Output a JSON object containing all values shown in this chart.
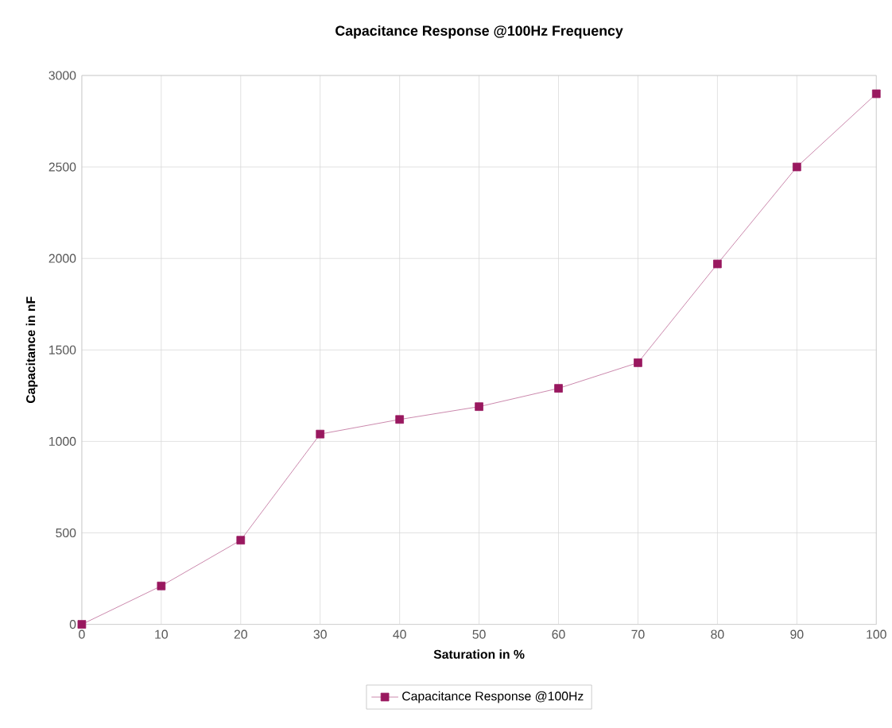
{
  "chart_data": {
    "type": "line",
    "title": "Capacitance Response @100Hz Frequency",
    "xlabel": "Saturation in %",
    "ylabel": "Capacitance in nF",
    "x": [
      0,
      10,
      20,
      30,
      40,
      50,
      60,
      70,
      80,
      90,
      100
    ],
    "series": [
      {
        "name": "Capacitance Response @100Hz",
        "color": "#99185f",
        "values": [
          0,
          210,
          460,
          1040,
          1120,
          1190,
          1290,
          1430,
          1970,
          2500,
          2900
        ]
      }
    ],
    "xlim": [
      0,
      100
    ],
    "ylim": [
      0,
      3000
    ],
    "xticks": [
      0,
      10,
      20,
      30,
      40,
      50,
      60,
      70,
      80,
      90,
      100
    ],
    "yticks": [
      0,
      500,
      1000,
      1500,
      2000,
      2500,
      3000
    ],
    "grid": true,
    "legend": "bottom",
    "marker": "square",
    "line_style": "solid"
  }
}
